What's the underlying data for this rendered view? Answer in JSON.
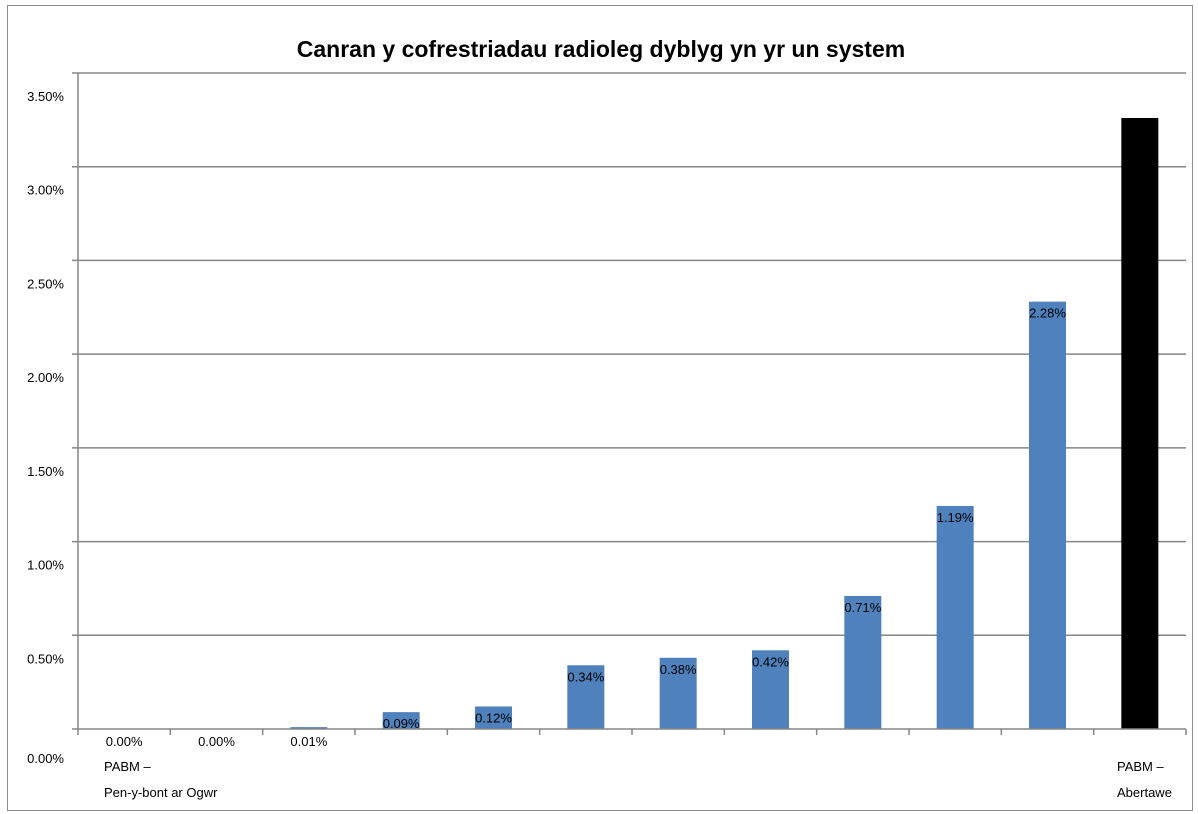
{
  "chart_data": {
    "type": "bar",
    "title": "Canran y cofrestriadau radioleg dyblyg yn yr un system",
    "xlabel": "",
    "ylabel": "",
    "ylim": [
      0,
      0.035
    ],
    "yticks": [
      "0.00%",
      "0.50%",
      "1.00%",
      "1.50%",
      "2.00%",
      "2.50%",
      "3.00%",
      "3.50%"
    ],
    "first_category_label": [
      "PABM –",
      "Pen-y-bont ar Ogwr"
    ],
    "last_category_label": [
      "PABM –",
      "Abertawe"
    ],
    "values": [
      0.0,
      0.0,
      0.0001,
      0.0009,
      0.0012,
      0.0034,
      0.0038,
      0.0042,
      0.0071,
      0.0119,
      0.0228,
      0.0326
    ],
    "data_labels": [
      "0.00%",
      "0.00%",
      "0.01%",
      "0.09%",
      "0.12%",
      "0.34%",
      "0.38%",
      "0.42%",
      "0.71%",
      "1.19%",
      "2.28%",
      "3.26%"
    ],
    "bar_colors": [
      "#4f81bd",
      "#4f81bd",
      "#4f81bd",
      "#4f81bd",
      "#4f81bd",
      "#4f81bd",
      "#4f81bd",
      "#4f81bd",
      "#4f81bd",
      "#4f81bd",
      "#4f81bd",
      "#000000"
    ],
    "grid": true,
    "legend": "none"
  }
}
